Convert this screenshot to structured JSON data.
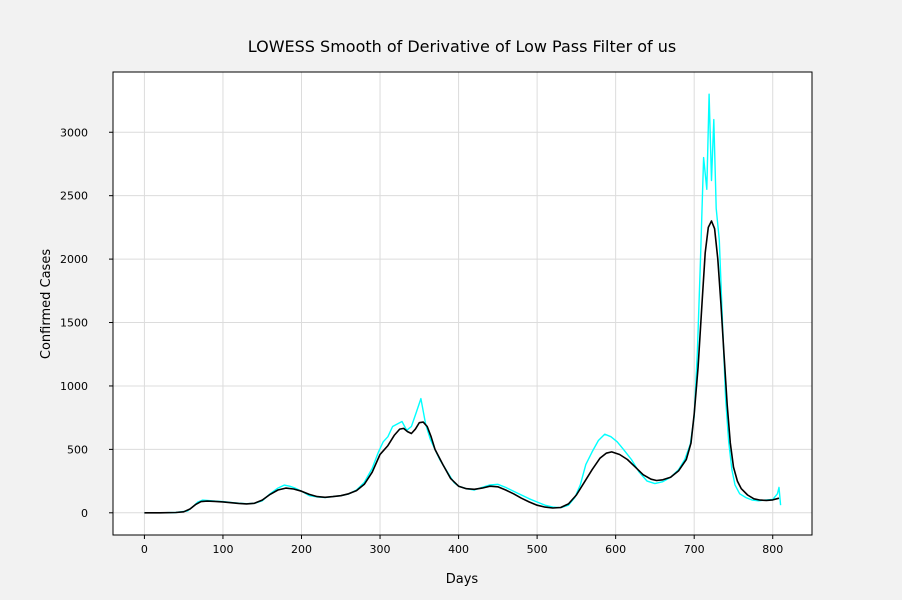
{
  "chart_data": {
    "type": "line",
    "title": "LOWESS Smooth of  Derivative of Low Pass Filter of us",
    "xlabel": "Days",
    "ylabel": "Confirmed Cases",
    "xlim": [
      -40,
      850
    ],
    "ylim": [
      -175,
      3475
    ],
    "x_ticks": [
      0,
      100,
      200,
      300,
      400,
      500,
      600,
      700,
      800
    ],
    "y_ticks": [
      0,
      500,
      1000,
      1500,
      2000,
      2500,
      3000
    ],
    "grid": true,
    "legend": "none",
    "series": [
      {
        "color": "#00ffff",
        "style": "raw-noisy",
        "points": [
          [
            0,
            0
          ],
          [
            20,
            0
          ],
          [
            40,
            2
          ],
          [
            55,
            15
          ],
          [
            62,
            50
          ],
          [
            68,
            85
          ],
          [
            74,
            100
          ],
          [
            80,
            98
          ],
          [
            90,
            92
          ],
          [
            100,
            88
          ],
          [
            110,
            82
          ],
          [
            120,
            76
          ],
          [
            130,
            72
          ],
          [
            140,
            75
          ],
          [
            150,
            95
          ],
          [
            160,
            150
          ],
          [
            170,
            195
          ],
          [
            178,
            218
          ],
          [
            185,
            210
          ],
          [
            192,
            195
          ],
          [
            200,
            170
          ],
          [
            210,
            135
          ],
          [
            220,
            125
          ],
          [
            230,
            120
          ],
          [
            240,
            128
          ],
          [
            250,
            135
          ],
          [
            260,
            148
          ],
          [
            270,
            180
          ],
          [
            280,
            240
          ],
          [
            290,
            350
          ],
          [
            298,
            480
          ],
          [
            304,
            560
          ],
          [
            310,
            600
          ],
          [
            316,
            680
          ],
          [
            322,
            700
          ],
          [
            328,
            720
          ],
          [
            334,
            650
          ],
          [
            340,
            680
          ],
          [
            346,
            790
          ],
          [
            352,
            900
          ],
          [
            358,
            700
          ],
          [
            364,
            580
          ],
          [
            370,
            500
          ],
          [
            376,
            420
          ],
          [
            382,
            360
          ],
          [
            388,
            300
          ],
          [
            394,
            240
          ],
          [
            400,
            210
          ],
          [
            410,
            190
          ],
          [
            420,
            180
          ],
          [
            430,
            200
          ],
          [
            440,
            220
          ],
          [
            450,
            225
          ],
          [
            460,
            200
          ],
          [
            470,
            170
          ],
          [
            480,
            140
          ],
          [
            490,
            110
          ],
          [
            500,
            85
          ],
          [
            510,
            60
          ],
          [
            520,
            45
          ],
          [
            530,
            40
          ],
          [
            540,
            60
          ],
          [
            548,
            120
          ],
          [
            555,
            220
          ],
          [
            562,
            380
          ],
          [
            570,
            480
          ],
          [
            578,
            570
          ],
          [
            586,
            620
          ],
          [
            594,
            600
          ],
          [
            602,
            560
          ],
          [
            610,
            500
          ],
          [
            620,
            420
          ],
          [
            630,
            320
          ],
          [
            640,
            250
          ],
          [
            650,
            230
          ],
          [
            660,
            245
          ],
          [
            670,
            280
          ],
          [
            680,
            340
          ],
          [
            688,
            420
          ],
          [
            695,
            540
          ],
          [
            700,
            760
          ],
          [
            704,
            1250
          ],
          [
            708,
            2000
          ],
          [
            712,
            2800
          ],
          [
            716,
            2550
          ],
          [
            719,
            3300
          ],
          [
            722,
            2620
          ],
          [
            725,
            3100
          ],
          [
            728,
            2400
          ],
          [
            732,
            2150
          ],
          [
            736,
            1500
          ],
          [
            740,
            900
          ],
          [
            744,
            560
          ],
          [
            748,
            340
          ],
          [
            752,
            220
          ],
          [
            758,
            150
          ],
          [
            766,
            120
          ],
          [
            774,
            100
          ],
          [
            782,
            95
          ],
          [
            790,
            100
          ],
          [
            800,
            105
          ],
          [
            806,
            150
          ],
          [
            808,
            200
          ],
          [
            810,
            60
          ]
        ]
      },
      {
        "color": "#000000",
        "style": "smooth",
        "points": [
          [
            0,
            0
          ],
          [
            20,
            0
          ],
          [
            40,
            2
          ],
          [
            50,
            8
          ],
          [
            58,
            30
          ],
          [
            65,
            65
          ],
          [
            72,
            88
          ],
          [
            80,
            92
          ],
          [
            90,
            90
          ],
          [
            100,
            86
          ],
          [
            110,
            80
          ],
          [
            120,
            74
          ],
          [
            130,
            70
          ],
          [
            140,
            75
          ],
          [
            150,
            100
          ],
          [
            160,
            145
          ],
          [
            170,
            180
          ],
          [
            180,
            195
          ],
          [
            190,
            188
          ],
          [
            200,
            170
          ],
          [
            210,
            145
          ],
          [
            220,
            128
          ],
          [
            230,
            122
          ],
          [
            240,
            128
          ],
          [
            250,
            135
          ],
          [
            260,
            150
          ],
          [
            270,
            175
          ],
          [
            280,
            225
          ],
          [
            290,
            320
          ],
          [
            300,
            460
          ],
          [
            310,
            530
          ],
          [
            318,
            610
          ],
          [
            325,
            660
          ],
          [
            330,
            665
          ],
          [
            335,
            640
          ],
          [
            340,
            625
          ],
          [
            345,
            660
          ],
          [
            350,
            710
          ],
          [
            355,
            715
          ],
          [
            360,
            680
          ],
          [
            365,
            600
          ],
          [
            370,
            500
          ],
          [
            380,
            380
          ],
          [
            390,
            270
          ],
          [
            400,
            210
          ],
          [
            410,
            190
          ],
          [
            420,
            185
          ],
          [
            430,
            195
          ],
          [
            440,
            210
          ],
          [
            450,
            205
          ],
          [
            460,
            180
          ],
          [
            470,
            150
          ],
          [
            480,
            115
          ],
          [
            490,
            85
          ],
          [
            500,
            60
          ],
          [
            510,
            45
          ],
          [
            520,
            38
          ],
          [
            530,
            42
          ],
          [
            540,
            70
          ],
          [
            550,
            140
          ],
          [
            560,
            240
          ],
          [
            570,
            340
          ],
          [
            580,
            430
          ],
          [
            588,
            470
          ],
          [
            595,
            480
          ],
          [
            605,
            460
          ],
          [
            615,
            420
          ],
          [
            625,
            360
          ],
          [
            635,
            300
          ],
          [
            645,
            265
          ],
          [
            652,
            255
          ],
          [
            660,
            260
          ],
          [
            670,
            280
          ],
          [
            680,
            330
          ],
          [
            690,
            420
          ],
          [
            696,
            550
          ],
          [
            700,
            780
          ],
          [
            705,
            1150
          ],
          [
            710,
            1650
          ],
          [
            714,
            2050
          ],
          [
            718,
            2250
          ],
          [
            722,
            2300
          ],
          [
            726,
            2240
          ],
          [
            730,
            2000
          ],
          [
            734,
            1650
          ],
          [
            738,
            1250
          ],
          [
            742,
            850
          ],
          [
            746,
            550
          ],
          [
            750,
            360
          ],
          [
            755,
            250
          ],
          [
            760,
            190
          ],
          [
            768,
            140
          ],
          [
            776,
            110
          ],
          [
            784,
            100
          ],
          [
            792,
            98
          ],
          [
            800,
            102
          ],
          [
            808,
            115
          ]
        ]
      }
    ]
  }
}
